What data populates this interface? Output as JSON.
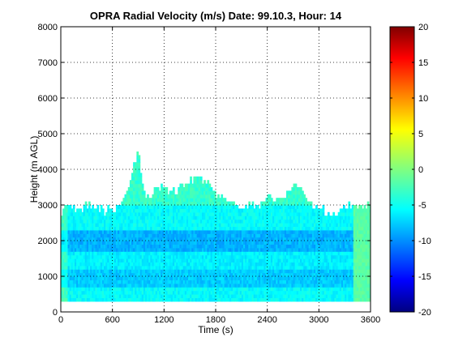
{
  "chart_data": {
    "type": "heatmap",
    "title": "OPRA Radial Velocity (m/s)  Date: 99.10.3, Hour: 14",
    "xlabel": "Time (s)",
    "ylabel": "Height (m AGL)",
    "xlim": [
      0,
      3600
    ],
    "ylim": [
      0,
      8000
    ],
    "x_ticks": [
      "0",
      "600",
      "1200",
      "1800",
      "2400",
      "3000",
      "3600"
    ],
    "y_ticks": [
      "0",
      "1000",
      "2000",
      "3000",
      "4000",
      "5000",
      "6000",
      "7000",
      "8000"
    ],
    "grid": true,
    "colorbar": {
      "range": [
        -20,
        20
      ],
      "ticks": [
        "20",
        "15",
        "10",
        "5",
        "0",
        "-5",
        "-10",
        "-15",
        "-20"
      ],
      "colormap": "jet"
    },
    "echo_region": {
      "bottom_m": 300,
      "top_profile": [
        [
          0,
          2700
        ],
        [
          60,
          2900
        ],
        [
          120,
          2950
        ],
        [
          200,
          2800
        ],
        [
          300,
          2900
        ],
        [
          400,
          2950
        ],
        [
          500,
          2800
        ],
        [
          600,
          2850
        ],
        [
          700,
          3000
        ],
        [
          780,
          3300
        ],
        [
          860,
          4200
        ],
        [
          900,
          4500
        ],
        [
          940,
          3600
        ],
        [
          1000,
          3200
        ],
        [
          1100,
          3300
        ],
        [
          1200,
          3500
        ],
        [
          1300,
          3300
        ],
        [
          1400,
          3500
        ],
        [
          1500,
          3600
        ],
        [
          1600,
          3700
        ],
        [
          1700,
          3600
        ],
        [
          1800,
          3300
        ],
        [
          1900,
          3100
        ],
        [
          2000,
          3000
        ],
        [
          2100,
          2900
        ],
        [
          2200,
          3000
        ],
        [
          2300,
          2950
        ],
        [
          2400,
          3200
        ],
        [
          2500,
          3100
        ],
        [
          2600,
          3200
        ],
        [
          2700,
          3500
        ],
        [
          2800,
          3400
        ],
        [
          2900,
          3000
        ],
        [
          3000,
          2900
        ],
        [
          3100,
          2700
        ],
        [
          3200,
          2700
        ],
        [
          3300,
          2900
        ],
        [
          3400,
          3000
        ],
        [
          3500,
          2950
        ],
        [
          3600,
          2950
        ]
      ],
      "velocity_bands": [
        {
          "from_m": 300,
          "to_m": 700,
          "value": -5
        },
        {
          "from_m": 700,
          "to_m": 1200,
          "value": -7
        },
        {
          "from_m": 1200,
          "to_m": 1700,
          "value": -5.5
        },
        {
          "from_m": 1700,
          "to_m": 2300,
          "value": -8
        },
        {
          "from_m": 2300,
          "to_m": 3000,
          "value": -5
        },
        {
          "from_m": 3000,
          "to_m": 4600,
          "value": -3
        }
      ],
      "right_edge_value": -1.5
    }
  }
}
